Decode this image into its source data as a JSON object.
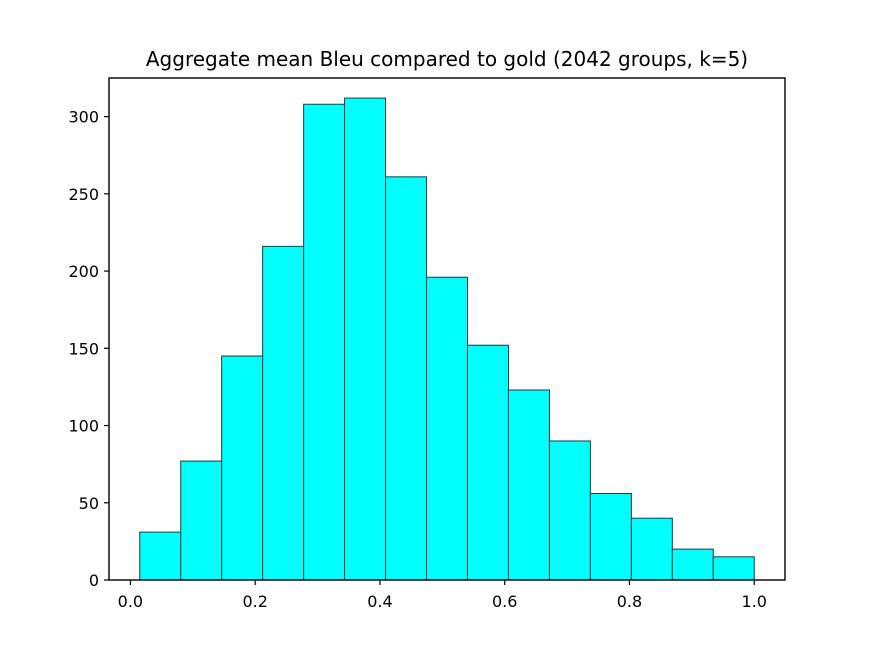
{
  "chart_data": {
    "type": "bar",
    "title": "Aggregate mean Bleu compared to gold (2042 groups, k=5)",
    "xlabel": "",
    "ylabel": "",
    "bin_edges": [
      0.015,
      0.0807,
      0.1463,
      0.212,
      0.2777,
      0.3433,
      0.409,
      0.4747,
      0.5403,
      0.606,
      0.6717,
      0.7373,
      0.803,
      0.8687,
      0.9343,
      1.0
    ],
    "values": [
      31,
      77,
      145,
      216,
      308,
      312,
      261,
      196,
      152,
      123,
      90,
      56,
      40,
      20,
      15
    ],
    "xlim": [
      -0.0343,
      1.0493
    ],
    "ylim": [
      0,
      325
    ],
    "x_ticks": [
      0.0,
      0.2,
      0.4,
      0.6,
      0.8,
      1.0
    ],
    "x_tick_labels": [
      "0.0",
      "0.2",
      "0.4",
      "0.6",
      "0.8",
      "1.0"
    ],
    "y_ticks": [
      0,
      50,
      100,
      150,
      200,
      250,
      300
    ],
    "y_tick_labels": [
      "0",
      "50",
      "100",
      "150",
      "200",
      "250",
      "300"
    ],
    "bar_color": "#00ffff",
    "edge_color": "#1a3b3b",
    "grid": false,
    "legend": "none"
  }
}
